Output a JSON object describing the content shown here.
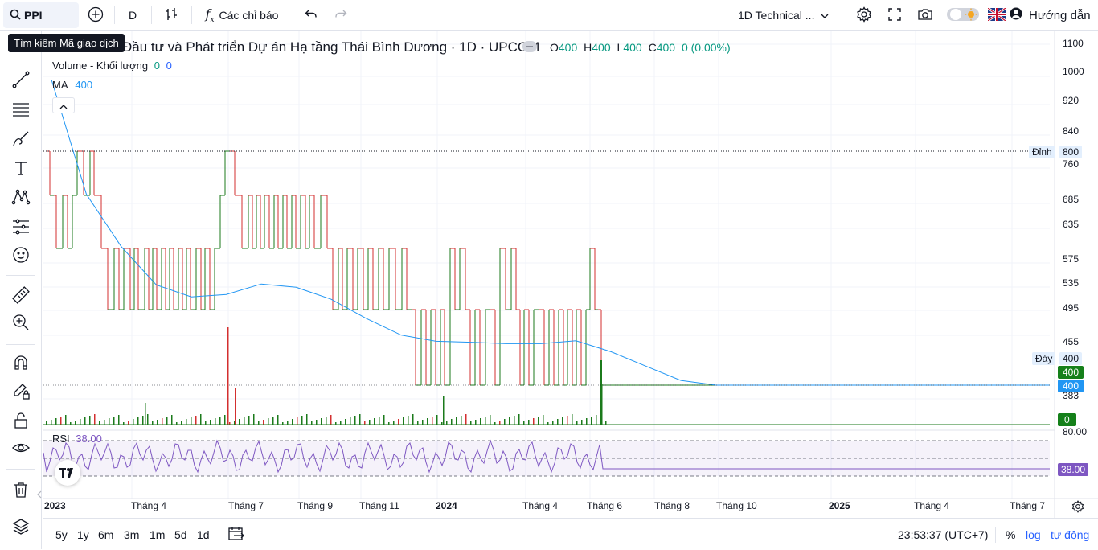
{
  "topbar": {
    "symbol": "PPI",
    "interval": "D",
    "indicators_label": "Các chỉ báo",
    "layout_label": "1D Technical ...",
    "guide_label": "Hướng dẫn"
  },
  "tooltip": "Tìm kiếm Mã giao dịch",
  "legend": {
    "title": "Đầu tư và Phát triển Dự án Hạ tầng Thái Bình Dương · 1D · UPCOM",
    "o_label": "O",
    "o_value": "400",
    "h_label": "H",
    "h_value": "400",
    "l_label": "L",
    "l_value": "400",
    "c_label": "C",
    "c_value": "400",
    "change": "0 (0.00%)",
    "volume_label": "Volume - Khối lượng",
    "volume_v1": "0",
    "volume_v2": "0",
    "ma_label": "MA",
    "ma_value": "400",
    "rsi_label": "RSI",
    "rsi_value": "38.00"
  },
  "price_axis": [
    "1100",
    "1000",
    "920",
    "840",
    "760",
    "685",
    "635",
    "575",
    "535",
    "495",
    "455",
    "383"
  ],
  "price_tags": {
    "high_label": "Đỉnh",
    "high_value": "800",
    "low_label": "Đáy",
    "low_value": "400",
    "last_price": "400",
    "ma_price": "400",
    "volume_last": "0",
    "rsi_top": "80.00",
    "rsi_last": "38.00"
  },
  "time_axis": [
    "2023",
    "Tháng 4",
    "Tháng 7",
    "Tháng 9",
    "Tháng 11",
    "2024",
    "Tháng 4",
    "Tháng 6",
    "Tháng 8",
    "Tháng 10",
    "2025",
    "Tháng 4",
    "Tháng 7"
  ],
  "bottombar": {
    "ranges": [
      "5y",
      "1y",
      "6m",
      "3m",
      "1m",
      "5d",
      "1d"
    ],
    "clock": "23:53:37 (UTC+7)",
    "percent": "%",
    "log": "log",
    "auto": "tự động"
  },
  "colors": {
    "up": "#089981",
    "bar_up": "#1b7a1b",
    "bar_down": "#d32f2f",
    "ma": "#2196f3",
    "rsi": "#7e57c2",
    "accent": "#2962ff"
  },
  "chart_data": {
    "type": "bar",
    "series": [
      {
        "name": "MA",
        "values": [
          1040,
          800,
          690,
          610,
          585,
          590,
          612,
          605,
          580,
          540,
          505,
          492,
          490,
          487,
          487,
          493,
          470,
          440,
          410,
          400,
          400,
          400
        ]
      }
    ],
    "ylim": [
      380,
      1110
    ],
    "rsi_value": 38.0,
    "rsi_ylim": [
      20,
      80
    ]
  }
}
